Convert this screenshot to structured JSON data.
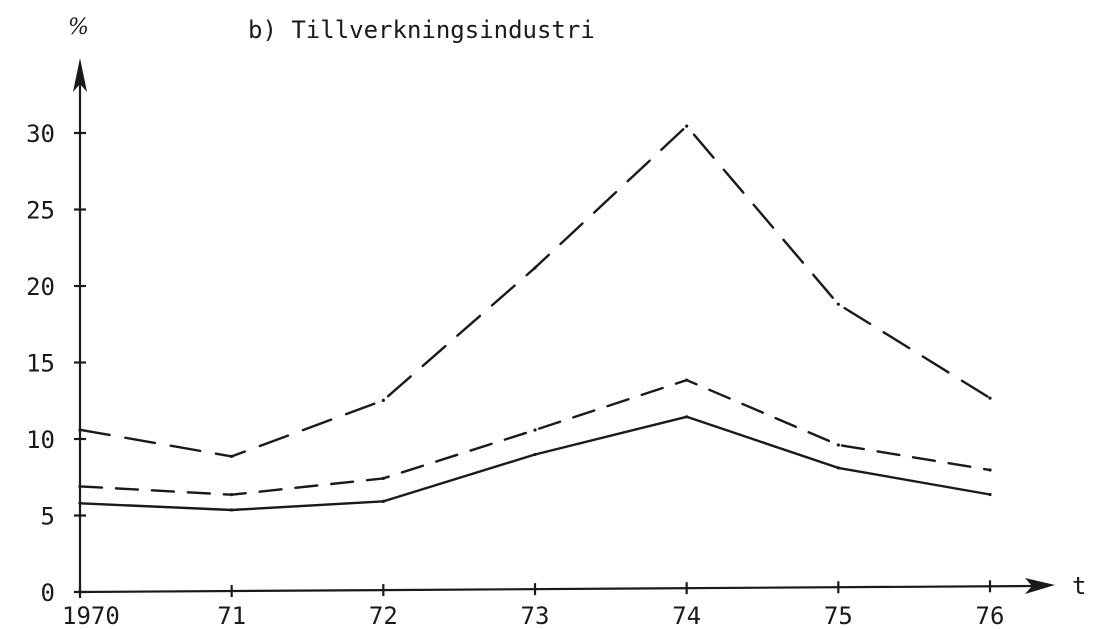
{
  "chart_data": {
    "type": "line",
    "title": "b) Tillverkningsindustri",
    "ylabel": "%",
    "xlabel": "t",
    "x": [
      1970,
      1971,
      1972,
      1973,
      1974,
      1975,
      1976
    ],
    "x_tick_labels": [
      "1970",
      "71",
      "72",
      "73",
      "74",
      "75",
      "76"
    ],
    "y_ticks": [
      0,
      5,
      10,
      15,
      20,
      25,
      30
    ],
    "y_tick_labels": [
      "0",
      "5",
      "10",
      "15",
      "20",
      "25",
      "30"
    ],
    "ylim": [
      0,
      33
    ],
    "grid": false,
    "series": [
      {
        "style": "long-dash",
        "values": [
          10.6,
          8.8,
          12.4,
          21.0,
          30.2,
          18.5,
          12.3
        ]
      },
      {
        "style": "dash",
        "values": [
          6.9,
          6.3,
          7.3,
          10.4,
          13.6,
          9.3,
          7.6
        ]
      },
      {
        "style": "solid",
        "values": [
          5.8,
          5.3,
          5.8,
          8.8,
          11.2,
          7.8,
          6.0
        ]
      }
    ],
    "colors": {
      "ink": "#1a1a1a"
    }
  }
}
